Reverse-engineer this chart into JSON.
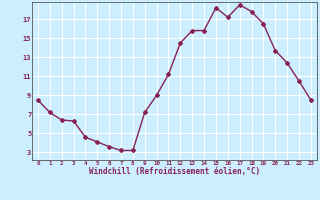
{
  "x": [
    0,
    1,
    2,
    3,
    4,
    5,
    6,
    7,
    8,
    9,
    10,
    11,
    12,
    13,
    14,
    15,
    16,
    17,
    18,
    19,
    20,
    21,
    22,
    23
  ],
  "y": [
    8.5,
    7.2,
    6.4,
    6.3,
    4.6,
    4.1,
    3.6,
    3.2,
    3.2,
    7.2,
    9.0,
    11.2,
    14.5,
    15.8,
    15.8,
    18.2,
    17.2,
    18.5,
    17.8,
    16.5,
    13.7,
    12.4,
    10.5,
    8.5
  ],
  "line_color": "#882255",
  "marker": "D",
  "markersize": 2.0,
  "bg_color": "#cceeff",
  "grid_color": "#ffffff",
  "xlabel": "Windchill (Refroidissement éolien,°C)",
  "ylabel": "",
  "yticks": [
    3,
    5,
    7,
    9,
    11,
    13,
    15,
    17
  ],
  "xticks": [
    0,
    1,
    2,
    3,
    4,
    5,
    6,
    7,
    8,
    9,
    10,
    11,
    12,
    13,
    14,
    15,
    16,
    17,
    18,
    19,
    20,
    21,
    22,
    23
  ],
  "xlim": [
    -0.5,
    23.5
  ],
  "ylim": [
    2.2,
    18.8
  ],
  "tick_color": "#882255",
  "label_color": "#882255",
  "linewidth": 1.0,
  "figsize": [
    3.2,
    2.0
  ],
  "dpi": 100
}
